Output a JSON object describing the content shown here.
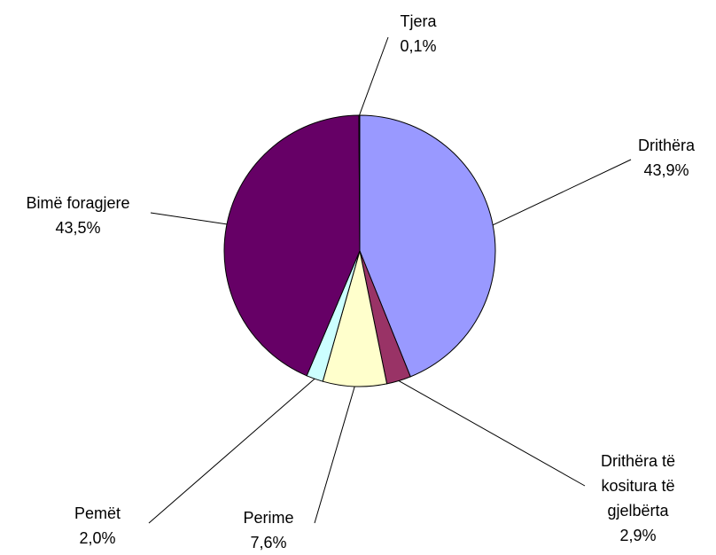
{
  "chart_data": {
    "type": "pie",
    "categories": [
      "Drithëra",
      "Drithëra të kositura të gjelbërta",
      "Perime",
      "Pemët",
      "Bimë foragjere",
      "Tjera"
    ],
    "values": [
      43.9,
      2.9,
      7.6,
      2.0,
      43.5,
      0.1
    ],
    "value_labels": [
      "43,9%",
      "2,9%",
      "7,6%",
      "2,0%",
      "43,5%",
      "0,1%"
    ],
    "colors": [
      "#9999ff",
      "#993366",
      "#ffffcc",
      "#ccffff",
      "#660066",
      "#ff8080"
    ]
  }
}
